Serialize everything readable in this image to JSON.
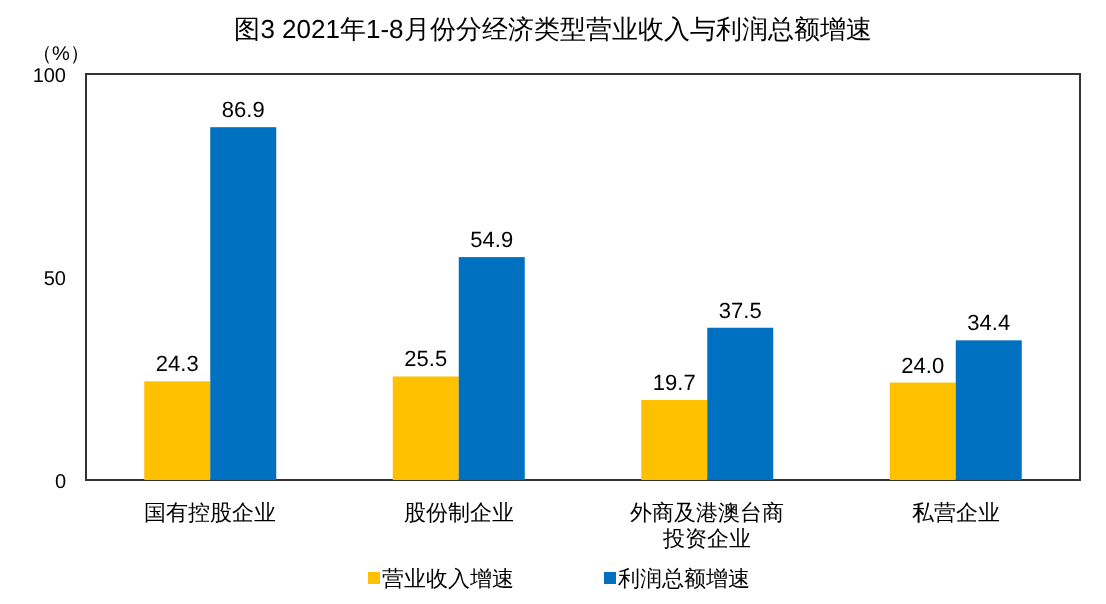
{
  "chart_data": {
    "type": "bar",
    "title": "图3  2021年1-8月份分经济类型营业收入与利润总额增速",
    "ylabel": "（%）",
    "categories": [
      "国有控股企业",
      "股份制企业",
      "外商及港澳台商投资企业",
      "私营企业"
    ],
    "series": [
      {
        "name": "营业收入增速",
        "color": "#ffc000",
        "values": [
          24.3,
          25.5,
          19.7,
          24.0
        ],
        "value_labels": [
          "24.3",
          "25.5",
          "19.7",
          "24.0"
        ]
      },
      {
        "name": "利润总额增速",
        "color": "#0070c0",
        "values": [
          86.9,
          54.9,
          37.5,
          34.4
        ],
        "value_labels": [
          "86.9",
          "54.9",
          "37.5",
          "34.4"
        ]
      }
    ],
    "ylim": [
      0,
      100
    ],
    "yticks": [
      0,
      50,
      100
    ],
    "legend": "bottom",
    "grid": false
  }
}
